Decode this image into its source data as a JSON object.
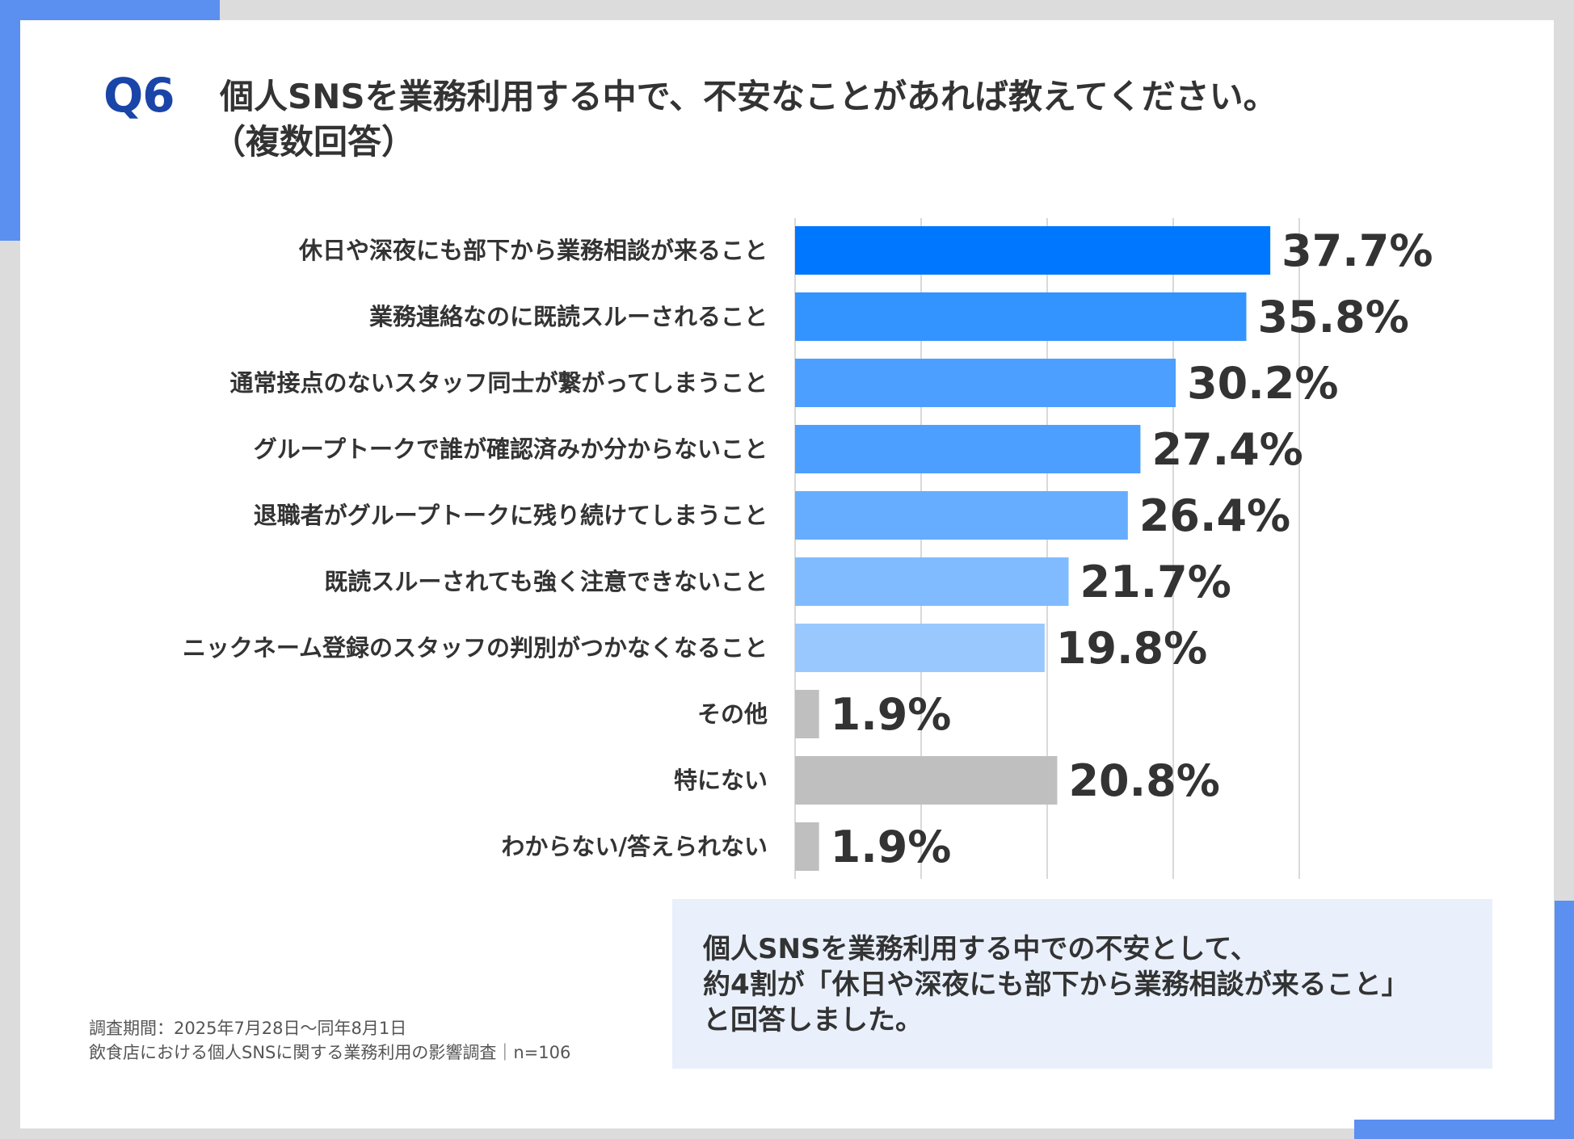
{
  "header": {
    "q_label": "Q6",
    "question_line1": "個人SNSを業務利用する中で、不安なことがあれば教えてください。",
    "question_line2": "（複数回答）"
  },
  "chart_data": {
    "type": "bar",
    "orientation": "horizontal",
    "categories": [
      "休日や深夜にも部下から業務相談が来ること",
      "業務連絡なのに既読スルーされること",
      "通常接点のないスタッフ同士が繋がってしまうこと",
      "グループトークで誰が確認済みか分からないこと",
      "退職者がグループトークに残り続けてしまうこと",
      "既読スルーされても強く注意できないこと",
      "ニックネーム登録のスタッフの判別がつかなくなること",
      "その他",
      "特にない",
      "わからない/答えられない"
    ],
    "values": [
      37.7,
      35.8,
      30.2,
      27.4,
      26.4,
      21.7,
      19.8,
      1.9,
      20.8,
      1.9
    ],
    "value_labels": [
      "37.7%",
      "35.8%",
      "30.2%",
      "27.4%",
      "26.4%",
      "21.7%",
      "19.8%",
      "1.9%",
      "20.8%",
      "1.9%"
    ],
    "bar_colors": [
      "#0077ff",
      "#3394ff",
      "#4d9fff",
      "#4d9fff",
      "#66adff",
      "#80bbff",
      "#99c8ff",
      "#bfbfbf",
      "#bfbfbf",
      "#bfbfbf"
    ],
    "xlim": [
      0,
      50
    ],
    "grid": true,
    "gridline_values": [
      0,
      10,
      20,
      30,
      40
    ],
    "gridline_color": "#d9d9d9"
  },
  "summary": {
    "line1": "個人SNSを業務利用する中での不安として、",
    "line2": "約4割が「休日や深夜にも部下から業務相談が来ること」",
    "line3": "と回答しました。"
  },
  "footnote": {
    "line1": "調査期間：2025年7月28日～同年8月1日",
    "line2": "飲食店における個人SNSに関する業務利用の影響調査｜n=106"
  },
  "colors": {
    "accent": "#5b8ff0",
    "q_label": "#1a45a8",
    "summary_bg": "#e9f0fc"
  }
}
